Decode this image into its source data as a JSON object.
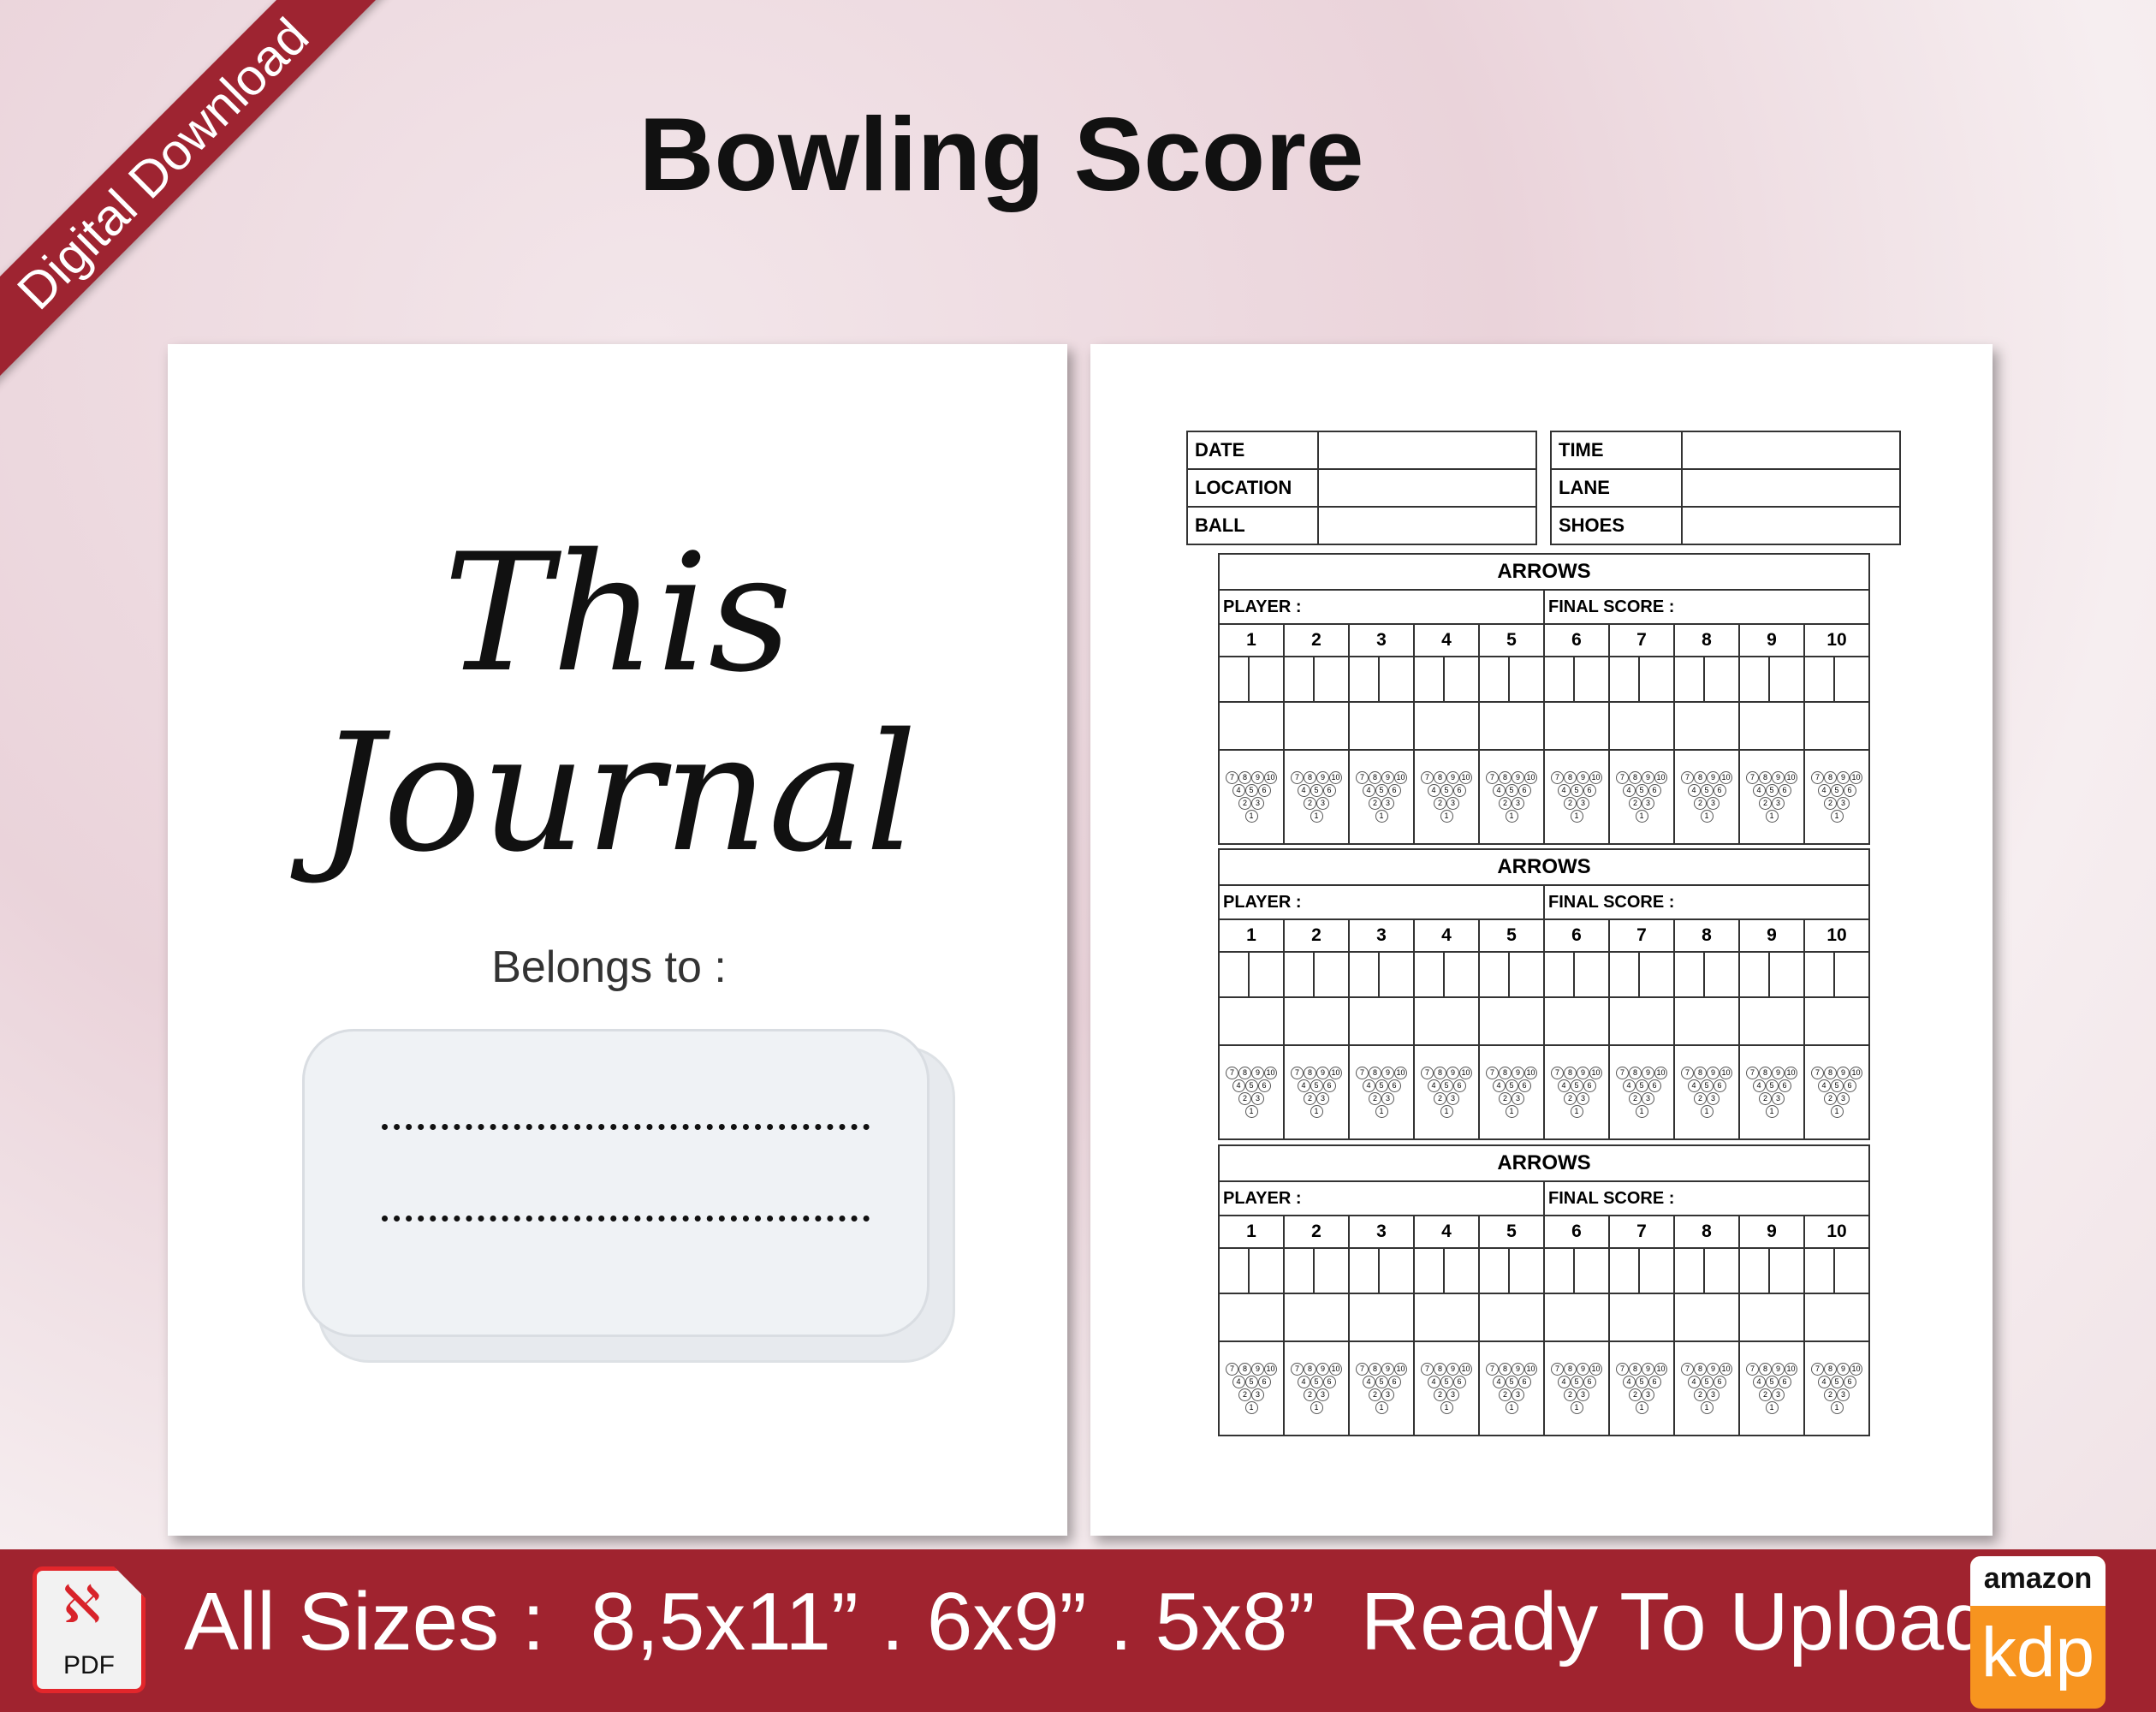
{
  "ribbon": "Digital Download",
  "title": "Bowling Score",
  "cover": {
    "line1": "This",
    "line2": "Journal",
    "belongs": "Belongs to :"
  },
  "info": {
    "left": [
      "DATE",
      "LOCATION",
      "BALL"
    ],
    "right": [
      "TIME",
      "LANE",
      "SHOES"
    ]
  },
  "score_block": {
    "heading": "ARROWS",
    "player": "PLAYER :",
    "final": "FINAL SCORE :",
    "frames": [
      "1",
      "2",
      "3",
      "4",
      "5",
      "6",
      "7",
      "8",
      "9",
      "10"
    ],
    "block_count": 3
  },
  "pins": [
    [
      "7",
      "8",
      "9",
      "10"
    ],
    [
      "4",
      "5",
      "6"
    ],
    [
      "2",
      "3"
    ],
    [
      "1"
    ]
  ],
  "footer": {
    "pdf_label": "PDF",
    "sizes": "All Sizes :  8,5x11” . 6x9” . 5x8”  Ready To Upload",
    "amazon": "amazon",
    "kdp": "kdp"
  },
  "colors": {
    "brand_red": "#a0232f",
    "kdp_orange": "#f7941f"
  }
}
